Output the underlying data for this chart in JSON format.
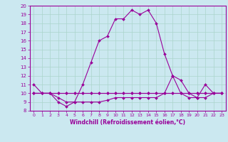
{
  "xlabel": "Windchill (Refroidissement éolien,°C)",
  "xlim": [
    -0.5,
    23.5
  ],
  "ylim": [
    8,
    20
  ],
  "xticks": [
    0,
    1,
    2,
    3,
    4,
    5,
    6,
    7,
    8,
    9,
    10,
    11,
    12,
    13,
    14,
    15,
    16,
    17,
    18,
    19,
    20,
    21,
    22,
    23
  ],
  "yticks": [
    8,
    9,
    10,
    11,
    12,
    13,
    14,
    15,
    16,
    17,
    18,
    19,
    20
  ],
  "bg_color": "#cbe8f0",
  "line_color": "#990099",
  "grid_color": "#aad4cc",
  "lines": [
    {
      "x": [
        0,
        1,
        2,
        3,
        4,
        5,
        6,
        7,
        8,
        9,
        10,
        11,
        12,
        13,
        14,
        15,
        16,
        17,
        18,
        19,
        20,
        21,
        22,
        23
      ],
      "y": [
        11,
        10,
        10,
        9,
        8.5,
        9,
        11,
        13.5,
        16,
        16.5,
        18.5,
        18.5,
        19.5,
        19,
        19.5,
        18,
        14.5,
        12,
        11.5,
        10,
        9.5,
        11,
        10,
        10
      ]
    },
    {
      "x": [
        0,
        1,
        2,
        3,
        4,
        5,
        6,
        7,
        8,
        9,
        10,
        11,
        12,
        13,
        14,
        15,
        16,
        17,
        18,
        19,
        20,
        21,
        22,
        23
      ],
      "y": [
        10,
        10,
        10,
        10,
        10,
        10,
        10,
        10,
        10,
        10,
        10,
        10,
        10,
        10,
        10,
        10,
        10,
        10,
        10,
        10,
        10,
        10,
        10,
        10
      ]
    },
    {
      "x": [
        0,
        1,
        2,
        3,
        4,
        5,
        6,
        7,
        8,
        9,
        10,
        11,
        12,
        13,
        14,
        15,
        16,
        17,
        18,
        19,
        20,
        21,
        22,
        23
      ],
      "y": [
        10,
        10,
        10,
        10,
        10,
        10,
        10,
        10,
        10,
        10,
        10,
        10,
        10,
        10,
        10,
        10,
        10,
        10,
        10,
        10,
        10,
        10,
        10,
        10
      ]
    },
    {
      "x": [
        0,
        1,
        2,
        3,
        4,
        5,
        6,
        7,
        8,
        9,
        10,
        11,
        12,
        13,
        14,
        15,
        16,
        17,
        18,
        19,
        20,
        21,
        22,
        23
      ],
      "y": [
        10,
        10,
        10,
        9.5,
        9,
        9,
        9,
        9,
        9,
        9.2,
        9.5,
        9.5,
        9.5,
        9.5,
        9.5,
        9.5,
        10,
        12,
        10,
        9.5,
        9.5,
        9.5,
        10,
        10
      ]
    }
  ]
}
